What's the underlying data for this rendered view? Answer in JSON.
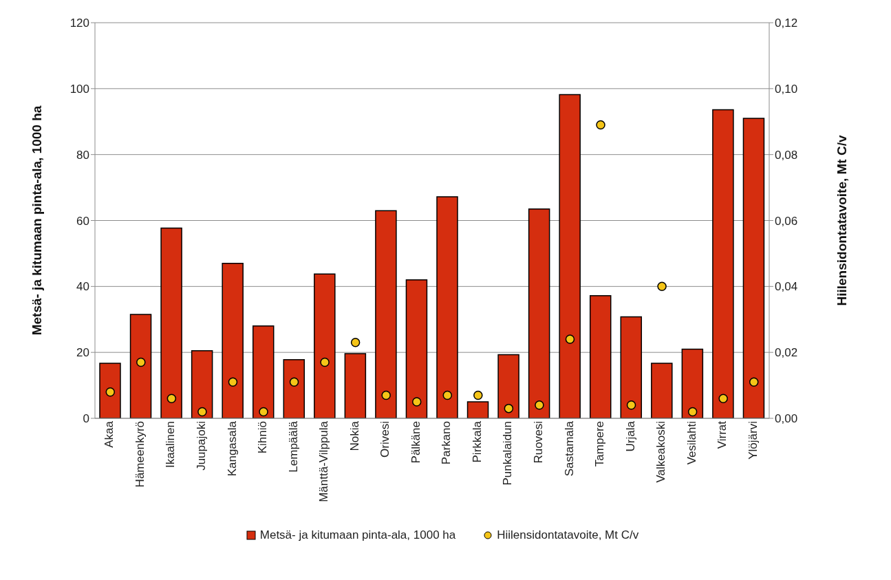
{
  "chart_data": {
    "type": "bar",
    "ylabel": "Metsä- ja kitumaan pinta-ala, 1000 ha",
    "y2label": "Hiilensidontatavoite, Mt C/v",
    "categories": [
      "Akaa",
      "Hämeenkyrö",
      "Ikaalinen",
      "Juupajoki",
      "Kangasala",
      "Kihniö",
      "Lempäälä",
      "Mänttä-Vilppula",
      "Nokia",
      "Orivesi",
      "Pälkäne",
      "Parkano",
      "Pirkkala",
      "Punkalaidun",
      "Ruovesi",
      "Sastamala",
      "Tampere",
      "Urjala",
      "Valkeakoski",
      "Vesilahti",
      "Virrat",
      "Ylöjärvi"
    ],
    "series": [
      {
        "name": "Metsä- ja kitumaan pinta-ala, 1000 ha",
        "color": "#d52e0f",
        "values": [
          16.7,
          31.5,
          57.7,
          20.5,
          47,
          28,
          17.8,
          43.8,
          19.6,
          63,
          42,
          67.2,
          5,
          19.3,
          63.5,
          98.2,
          37.2,
          30.8,
          16.7,
          21,
          93.6,
          91
        ]
      },
      {
        "name": "Hiilensidontatavoite, Mt C/v",
        "type": "scatter",
        "axis": "y2",
        "color": "#f5c518",
        "values": [
          0.008,
          0.017,
          0.006,
          0.002,
          0.011,
          0.002,
          0.011,
          0.017,
          0.023,
          0.007,
          0.005,
          0.007,
          0.007,
          0.003,
          0.004,
          0.024,
          0.089,
          0.004,
          0.04,
          0.002,
          0.006,
          0.011
        ]
      }
    ],
    "ylim": [
      0,
      120
    ],
    "yticks": [
      0,
      20,
      40,
      60,
      80,
      100,
      120
    ],
    "y2lim": [
      0,
      0.12
    ],
    "y2ticks": [
      {
        "value": 0,
        "label": "0,00"
      },
      {
        "value": 0.02,
        "label": "0,02"
      },
      {
        "value": 0.04,
        "label": "0,04"
      },
      {
        "value": 0.06,
        "label": "0,06"
      },
      {
        "value": 0.08,
        "label": "0,08"
      },
      {
        "value": 0.1,
        "label": "0,10"
      },
      {
        "value": 0.12,
        "label": "0,12"
      }
    ],
    "grid": "y",
    "legend": "bottom",
    "marker": "circle"
  }
}
